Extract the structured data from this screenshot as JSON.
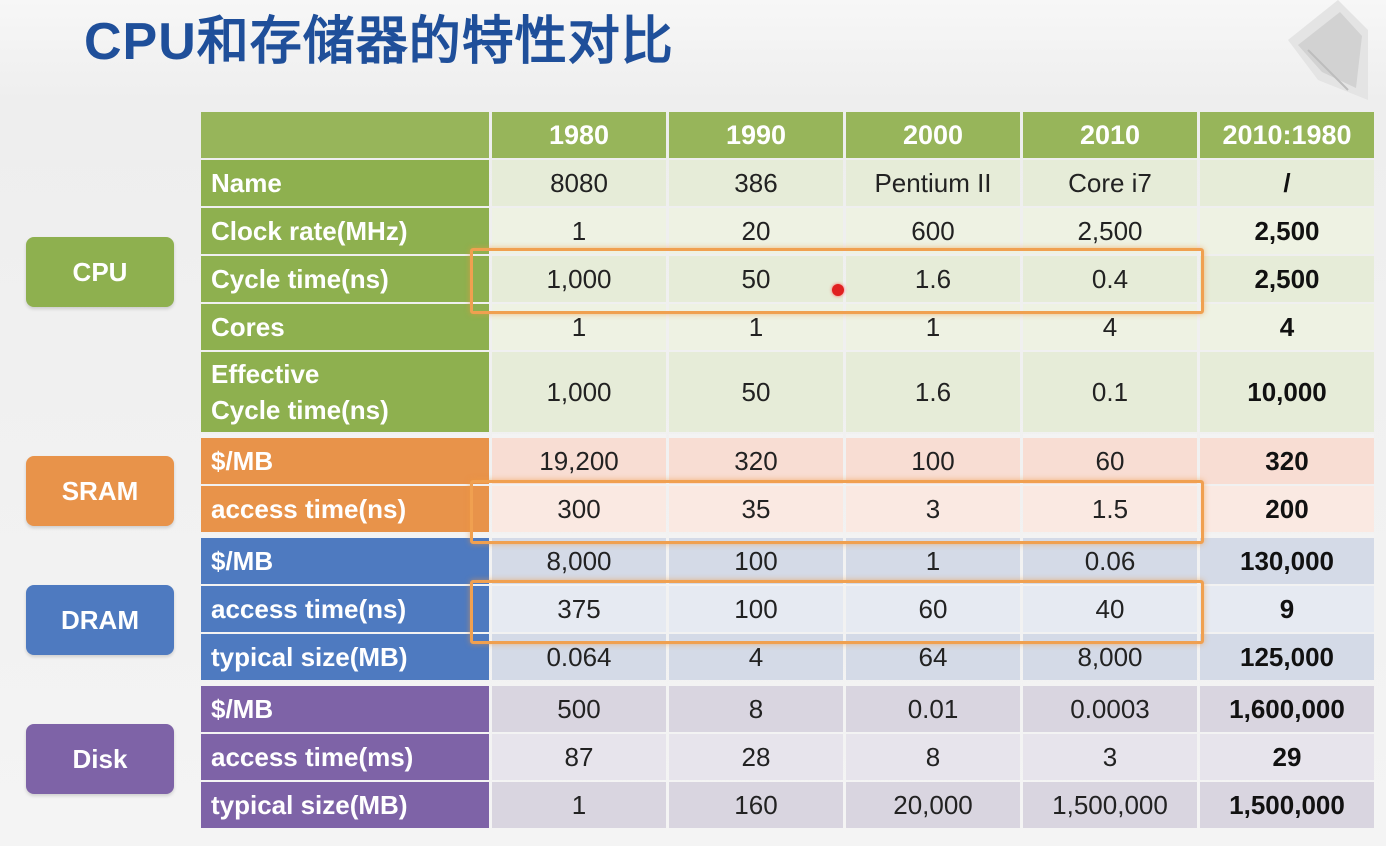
{
  "title": "CPU和存储器的特性对比",
  "columns": [
    "1980",
    "1990",
    "2000",
    "2010",
    "2010:1980"
  ],
  "groups": [
    {
      "label": "CPU",
      "color": "#8eb04f"
    },
    {
      "label": "SRAM",
      "color": "#e8934a"
    },
    {
      "label": "DRAM",
      "color": "#4e7ac0"
    },
    {
      "label": "Disk",
      "color": "#7e63a7"
    }
  ],
  "rows": [
    {
      "group": "cpu",
      "label": "Name",
      "values": [
        "8080",
        "386",
        "Pentium II",
        "Core i7",
        "/"
      ]
    },
    {
      "group": "cpu",
      "label": "Clock rate(MHz)",
      "values": [
        "1",
        "20",
        "600",
        "2,500",
        "2,500"
      ]
    },
    {
      "group": "cpu",
      "label": "Cycle time(ns)",
      "values": [
        "1,000",
        "50",
        "1.6",
        "0.4",
        "2,500"
      ]
    },
    {
      "group": "cpu",
      "label": "Cores",
      "values": [
        "1",
        "1",
        "1",
        "4",
        "4"
      ]
    },
    {
      "group": "cpu",
      "label": "Effective Cycle time(ns)",
      "label_line1": "Effective",
      "label_line2": "Cycle time(ns)",
      "values": [
        "1,000",
        "50",
        "1.6",
        "0.1",
        "10,000"
      ]
    },
    {
      "group": "sram",
      "label": "$/MB",
      "values": [
        "19,200",
        "320",
        "100",
        "60",
        "320"
      ]
    },
    {
      "group": "sram",
      "label": "access time(ns)",
      "values": [
        "300",
        "35",
        "3",
        "1.5",
        "200"
      ]
    },
    {
      "group": "dram",
      "label": "$/MB",
      "values": [
        "8,000",
        "100",
        "1",
        "0.06",
        "130,000"
      ]
    },
    {
      "group": "dram",
      "label": "access time(ns)",
      "values": [
        "375",
        "100",
        "60",
        "40",
        "9"
      ]
    },
    {
      "group": "dram",
      "label": "typical size(MB)",
      "values": [
        "0.064",
        "4",
        "64",
        "8,000",
        "125,000"
      ]
    },
    {
      "group": "disk",
      "label": "$/MB",
      "values": [
        "500",
        "8",
        "0.01",
        "0.0003",
        "1,600,000"
      ]
    },
    {
      "group": "disk",
      "label": "access time(ms)",
      "values": [
        "87",
        "28",
        "8",
        "3",
        "29"
      ]
    },
    {
      "group": "disk",
      "label": "typical size(MB)",
      "values": [
        "1",
        "160",
        "20,000",
        "1,500,000",
        "1,500,000"
      ]
    }
  ]
}
